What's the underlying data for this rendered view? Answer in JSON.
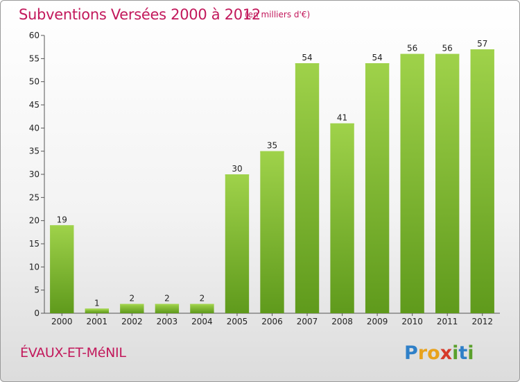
{
  "chart_data": {
    "type": "bar",
    "title": "Subventions Versées 2000 à 2012",
    "subtitle": "(en milliers d'€)",
    "categories": [
      "2000",
      "2001",
      "2002",
      "2003",
      "2004",
      "2005",
      "2006",
      "2007",
      "2008",
      "2009",
      "2010",
      "2011",
      "2012"
    ],
    "values": [
      19,
      1,
      2,
      2,
      2,
      30,
      35,
      54,
      41,
      54,
      56,
      56,
      57
    ],
    "ylim": [
      0,
      60
    ],
    "yticks": [
      0,
      5,
      10,
      15,
      20,
      25,
      30,
      35,
      40,
      45,
      50,
      55,
      60
    ],
    "grid": false,
    "bar_color": "#7cb82f",
    "bar_color_light": "#9fd24a",
    "bar_color_dark": "#5f9a1c"
  },
  "footer": {
    "commune": "ÉVAUX-ET-MéNIL",
    "brand": "Proxiti"
  },
  "colors": {
    "accent": "#c2185b"
  }
}
